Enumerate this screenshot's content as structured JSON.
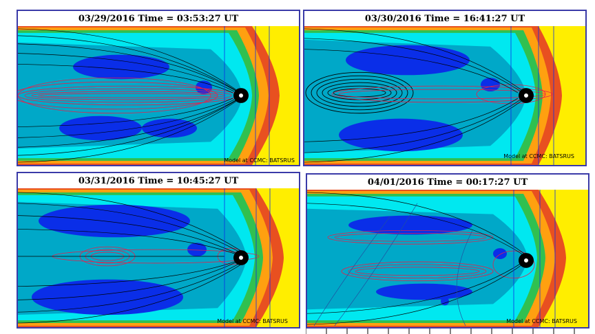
{
  "panels": [
    {
      "title": "03/29/2016 Time = 03:53:27 UT",
      "credit": "Model at CCMC: BATSRUS",
      "variant": "a"
    },
    {
      "title": "03/30/2016 Time = 16:41:27 UT",
      "credit": "Model at CCMC: BATSRUS",
      "variant": "b"
    },
    {
      "title": "03/31/2016 Time = 10:45:27 UT",
      "credit": "Model at CCMC: BATSRUS",
      "variant": "c"
    },
    {
      "title": "04/01/2016 Time = 00:17:27 UT",
      "credit": "Model at CCMC: BATSRUS",
      "variant": "d"
    }
  ],
  "colors": {
    "frame": "#3a3aa8",
    "solar_wind": "#ffee00",
    "bow_shock": "#e85020",
    "sheath": "#ffa010",
    "green": "#30c050",
    "cyan": "#00e8f0",
    "teal": "#00a8c8",
    "blue": "#0a2ee8",
    "field_line_black": "#000000",
    "field_line_red": "#e8204a",
    "planet": "#000000"
  }
}
